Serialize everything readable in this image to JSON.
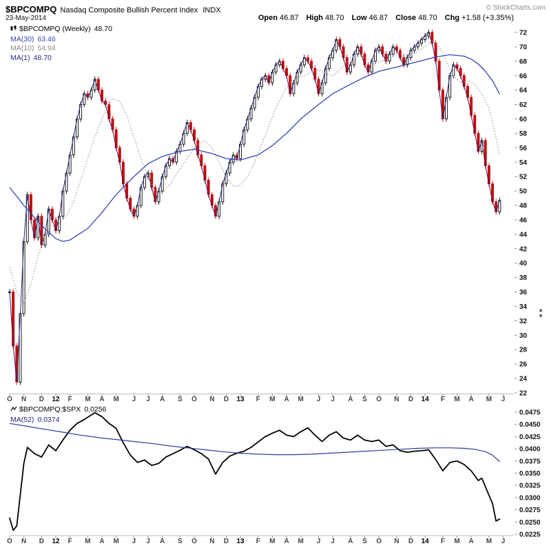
{
  "header": {
    "symbol": "$BPCOMPQ",
    "name": "Nasdaq Composite Bullish Percent Index",
    "exchange": "INDX",
    "copyright": "© StockCharts.com",
    "date": "23-May-2014",
    "quote": [
      {
        "label": "Open",
        "value": "46.87"
      },
      {
        "label": "High",
        "value": "48.70"
      },
      {
        "label": "Low",
        "value": "46.87"
      },
      {
        "label": "Close",
        "value": "48.70"
      },
      {
        "label": "Chg",
        "value": "+1.58 (+3.35%)"
      }
    ]
  },
  "main_legend": [
    {
      "label": "$BPCOMPQ (Weekly)",
      "value": "48.70",
      "color": "#000000"
    },
    {
      "label": "MA(30)",
      "value": "63.46",
      "color": "#3342b8"
    },
    {
      "label": "MA(10)",
      "value": "54.94",
      "color": "#8a8a8a"
    },
    {
      "label": "MA(1)",
      "value": "48.70",
      "color": "#1f2a7e"
    }
  ],
  "bottom_legend": [
    {
      "label": "$BPCOMPQ:$SPX",
      "value": "0.0256",
      "color": "#000000"
    },
    {
      "label": "MA(52)",
      "value": "0.0374",
      "color": "#1f2a7e"
    }
  ],
  "controls": {
    "scroll_up": "▲",
    "scroll_down": "▼"
  },
  "chart_data": {
    "type": "candlestick",
    "title": "$BPCOMPQ Nasdaq Composite Bullish Percent Index (Weekly) with $BPCOMPQ:$SPX ratio panel",
    "x_unit": "week_index_from_Oct_2011",
    "xlim": [
      0,
      142
    ],
    "xticks": [
      {
        "label": "O",
        "week": 0
      },
      {
        "label": "N",
        "week": 4
      },
      {
        "label": "D",
        "week": 9
      },
      {
        "label": "12",
        "week": 13,
        "year": true
      },
      {
        "label": "F",
        "week": 17
      },
      {
        "label": "M",
        "week": 22
      },
      {
        "label": "A",
        "week": 26
      },
      {
        "label": "M",
        "week": 30
      },
      {
        "label": "J",
        "week": 35
      },
      {
        "label": "J",
        "week": 39
      },
      {
        "label": "A",
        "week": 43
      },
      {
        "label": "S",
        "week": 48
      },
      {
        "label": "O",
        "week": 52
      },
      {
        "label": "N",
        "week": 57
      },
      {
        "label": "D",
        "week": 61
      },
      {
        "label": "13",
        "week": 65,
        "year": true
      },
      {
        "label": "F",
        "week": 70
      },
      {
        "label": "M",
        "week": 74
      },
      {
        "label": "A",
        "week": 78
      },
      {
        "label": "M",
        "week": 82
      },
      {
        "label": "J",
        "week": 87
      },
      {
        "label": "J",
        "week": 91
      },
      {
        "label": "A",
        "week": 96
      },
      {
        "label": "S",
        "week": 100
      },
      {
        "label": "O",
        "week": 104
      },
      {
        "label": "N",
        "week": 109
      },
      {
        "label": "D",
        "week": 113
      },
      {
        "label": "14",
        "week": 117,
        "year": true
      },
      {
        "label": "F",
        "week": 122
      },
      {
        "label": "M",
        "week": 126
      },
      {
        "label": "A",
        "week": 130
      },
      {
        "label": "M",
        "week": 135
      },
      {
        "label": "J",
        "week": 139
      }
    ],
    "colors": {
      "candle_up": "#000000",
      "candle_down": "#cc0000",
      "ma30": "#3342b8",
      "ma10": "#9a9a9a",
      "ma1": "#1f2a7e",
      "ratio_line": "#000000",
      "ma52": "#2b3a9e",
      "axis_text": "#111111",
      "axis_line": "#bbbbbb",
      "tick_mark": "#999999",
      "month_label": "#444444",
      "year_label": "#000000"
    },
    "panels": [
      {
        "id": "price",
        "name": "$BPCOMPQ (Weekly)",
        "last_close": 48.7,
        "ylim": [
          22,
          72
        ],
        "yticks": [
          22,
          24,
          26,
          28,
          30,
          32,
          34,
          36,
          38,
          40,
          42,
          44,
          46,
          48,
          50,
          52,
          54,
          56,
          58,
          60,
          62,
          64,
          66,
          68,
          70,
          72
        ],
        "closes": [
          36.0,
          28.5,
          23.5,
          33.0,
          43.0,
          49.5,
          46.0,
          43.5,
          46.5,
          42.5,
          44.0,
          47.5,
          46.0,
          44.5,
          46.5,
          50.0,
          52.5,
          55.0,
          57.5,
          60.0,
          62.0,
          63.5,
          63.0,
          64.0,
          65.5,
          64.0,
          62.5,
          62.0,
          60.0,
          58.5,
          56.0,
          54.0,
          51.0,
          49.0,
          47.5,
          46.5,
          48.0,
          50.5,
          52.0,
          52.5,
          50.5,
          48.5,
          50.0,
          52.0,
          53.5,
          54.5,
          54.0,
          55.5,
          56.5,
          58.0,
          59.5,
          58.5,
          57.0,
          55.0,
          53.5,
          51.5,
          49.5,
          48.0,
          46.5,
          48.5,
          51.0,
          52.5,
          54.0,
          55.0,
          54.5,
          56.5,
          58.5,
          60.0,
          61.5,
          63.0,
          64.5,
          65.5,
          66.0,
          65.0,
          66.5,
          67.5,
          68.0,
          67.0,
          66.0,
          63.5,
          65.0,
          66.5,
          67.5,
          68.5,
          68.0,
          67.0,
          65.5,
          63.5,
          65.0,
          67.0,
          68.5,
          69.5,
          71.0,
          70.0,
          68.5,
          66.5,
          67.5,
          69.0,
          70.0,
          69.0,
          67.5,
          66.5,
          68.0,
          69.5,
          70.0,
          69.0,
          68.0,
          69.0,
          70.0,
          69.5,
          68.5,
          67.5,
          68.5,
          69.5,
          70.0,
          70.5,
          71.0,
          71.5,
          72.0,
          70.5,
          68.0,
          64.0,
          60.0,
          63.0,
          66.0,
          67.5,
          67.0,
          66.0,
          64.5,
          63.0,
          60.5,
          58.0,
          55.5,
          57.0,
          53.5,
          51.0,
          48.5,
          47.12,
          48.7
        ],
        "ma30": {
          "value_now": 63.46,
          "x": [
            0,
            4,
            9,
            13,
            15,
            17,
            22,
            26,
            30,
            35,
            39,
            43,
            48,
            52,
            57,
            61,
            65,
            70,
            74,
            78,
            82,
            87,
            91,
            96,
            100,
            104,
            109,
            113,
            117,
            120,
            124,
            128,
            130,
            132,
            134,
            136,
            138
          ],
          "v": [
            50.5,
            48.0,
            45.2,
            43.4,
            43.0,
            43.2,
            44.8,
            47.0,
            49.5,
            52.0,
            53.8,
            54.8,
            55.5,
            55.8,
            55.2,
            54.5,
            54.3,
            55.0,
            56.3,
            58.0,
            60.0,
            62.0,
            63.5,
            64.8,
            65.8,
            66.6,
            67.2,
            67.7,
            68.2,
            68.6,
            68.9,
            68.7,
            68.3,
            67.6,
            66.6,
            65.3,
            63.46
          ]
        },
        "ma10": {
          "value_now": 54.94,
          "x": [
            0,
            2,
            4,
            6,
            8,
            10,
            12,
            14,
            16,
            18,
            20,
            22,
            24,
            26,
            28,
            29,
            31,
            33,
            35,
            37,
            39,
            41,
            43,
            45,
            47,
            49,
            51,
            53,
            55,
            57,
            59,
            61,
            63,
            65,
            67,
            69,
            71,
            73,
            75,
            77,
            79,
            81,
            83,
            85,
            87,
            89,
            91,
            93,
            95,
            97,
            99,
            101,
            103,
            105,
            107,
            109,
            111,
            113,
            115,
            117,
            119,
            121,
            123,
            125,
            127,
            129,
            131,
            133,
            135,
            136,
            137,
            138
          ],
          "v": [
            39.5,
            36.0,
            34.5,
            37.0,
            41.0,
            44.0,
            45.3,
            45.5,
            46.5,
            48.5,
            51.5,
            54.5,
            57.5,
            60.0,
            62.0,
            62.8,
            62.5,
            60.5,
            57.5,
            54.5,
            51.8,
            50.0,
            49.8,
            50.8,
            52.3,
            53.8,
            55.3,
            56.5,
            57.0,
            56.0,
            54.0,
            52.0,
            50.6,
            50.8,
            52.0,
            54.0,
            56.5,
            59.0,
            61.5,
            63.5,
            65.0,
            65.8,
            66.0,
            66.5,
            66.8,
            66.3,
            66.0,
            66.8,
            68.0,
            68.8,
            68.8,
            68.3,
            67.8,
            68.0,
            68.5,
            69.0,
            69.0,
            68.8,
            69.3,
            70.0,
            70.8,
            70.0,
            68.0,
            66.0,
            65.0,
            65.3,
            64.8,
            63.5,
            61.5,
            59.5,
            57.3,
            54.94
          ]
        },
        "ma1_value_now": 48.7
      },
      {
        "id": "ratio",
        "name": "$BPCOMPQ:$SPX",
        "last_value": 0.0256,
        "ylim": [
          0.0225,
          0.0475
        ],
        "yticks": [
          "0.0225",
          "0.0250",
          "0.0275",
          "0.0300",
          "0.0325",
          "0.0350",
          "0.0375",
          "0.0400",
          "0.0425",
          "0.0450",
          "0.0475"
        ],
        "line": {
          "x": [
            0,
            1,
            2,
            4,
            5,
            7,
            9,
            11,
            13,
            15,
            17,
            19,
            21,
            24,
            26,
            28,
            30,
            32,
            34,
            36,
            38,
            40,
            42,
            44,
            46,
            48,
            50,
            52,
            54,
            56,
            58,
            60,
            62,
            64,
            66,
            68,
            70,
            72,
            74,
            76,
            78,
            80,
            82,
            84,
            86,
            88,
            90,
            92,
            94,
            96,
            98,
            100,
            102,
            104,
            106,
            108,
            110,
            112,
            114,
            116,
            118,
            120,
            122,
            124,
            126,
            128,
            130,
            132,
            133,
            134,
            135,
            136,
            137,
            138
          ],
          "v": [
            0.0258,
            0.0233,
            0.0242,
            0.037,
            0.0403,
            0.039,
            0.0383,
            0.0408,
            0.0396,
            0.0418,
            0.0438,
            0.0452,
            0.046,
            0.0474,
            0.0466,
            0.0452,
            0.0442,
            0.0412,
            0.0387,
            0.0372,
            0.0377,
            0.0366,
            0.037,
            0.0383,
            0.039,
            0.0397,
            0.0405,
            0.0398,
            0.039,
            0.0379,
            0.0348,
            0.0372,
            0.0385,
            0.0391,
            0.0395,
            0.0403,
            0.0414,
            0.0425,
            0.0432,
            0.0438,
            0.0428,
            0.0425,
            0.0435,
            0.0443,
            0.0428,
            0.0415,
            0.0428,
            0.0435,
            0.0422,
            0.0418,
            0.0428,
            0.0418,
            0.0415,
            0.0418,
            0.0405,
            0.0408,
            0.0396,
            0.0393,
            0.0395,
            0.0396,
            0.0398,
            0.0378,
            0.0355,
            0.0372,
            0.0375,
            0.0368,
            0.0355,
            0.0335,
            0.034,
            0.0322,
            0.0305,
            0.0288,
            0.0252,
            0.0256
          ]
        },
        "ma52": {
          "value_now": 0.0374,
          "x": [
            0,
            5,
            10,
            15,
            20,
            26,
            30,
            35,
            40,
            45,
            50,
            55,
            60,
            65,
            70,
            75,
            80,
            85,
            90,
            95,
            100,
            105,
            110,
            115,
            120,
            124,
            128,
            131,
            134,
            136,
            138
          ],
          "v": [
            0.0452,
            0.0446,
            0.044,
            0.0434,
            0.0428,
            0.0422,
            0.0419,
            0.0415,
            0.0411,
            0.0406,
            0.0402,
            0.0398,
            0.0394,
            0.0391,
            0.0389,
            0.0388,
            0.0388,
            0.0389,
            0.0391,
            0.0393,
            0.0395,
            0.0397,
            0.0399,
            0.0401,
            0.0402,
            0.0402,
            0.0401,
            0.0399,
            0.0394,
            0.0387,
            0.0374
          ]
        }
      }
    ]
  }
}
